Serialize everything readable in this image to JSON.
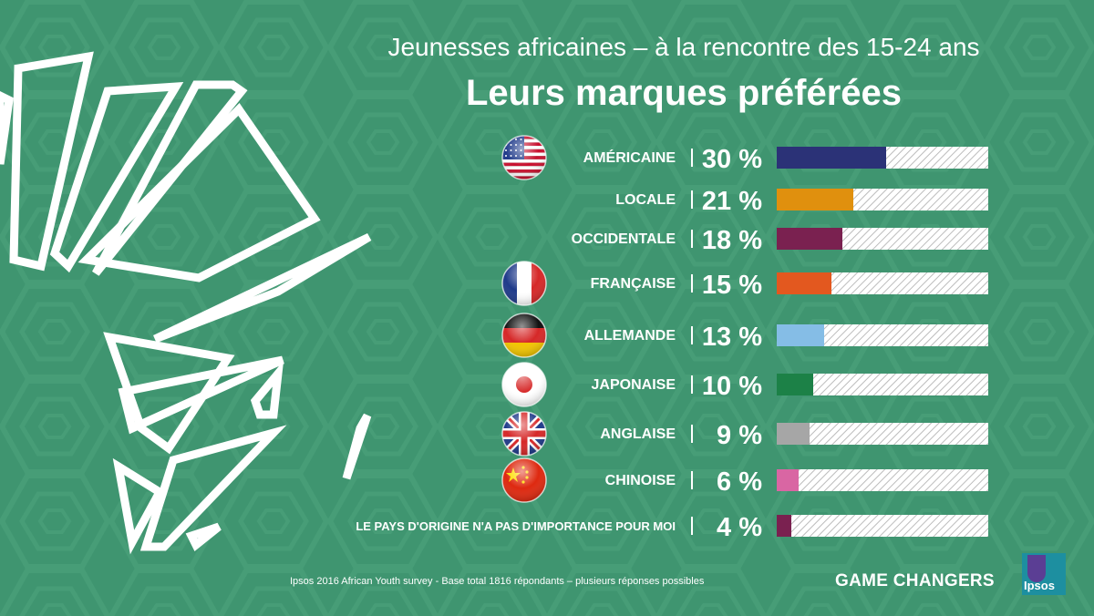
{
  "header": {
    "subtitle": "Jeunesses africaines – à la rencontre des 15-24 ans",
    "title": "Leurs marques préférées"
  },
  "colors": {
    "background": "#3f9570",
    "bar_track": "#ffffff",
    "bar_hatch": "#bcbcbc"
  },
  "chart_data": {
    "type": "bar",
    "orientation": "horizontal",
    "unit": "%",
    "xlim": [
      0,
      100
    ],
    "categories": [
      "AMÉRICAINE",
      "LOCALE",
      "OCCIDENTALE",
      "FRANÇAISE",
      "ALLEMANDE",
      "JAPONAISE",
      "ANGLAISE",
      "CHINOISE",
      "LE PAYS D'ORIGINE N'A PAS D'IMPORTANCE POUR MOI"
    ],
    "values": [
      30,
      21,
      18,
      15,
      13,
      10,
      9,
      6,
      4
    ],
    "value_labels": [
      "30 %",
      "21 %",
      "18 %",
      "15 %",
      "13 %",
      "10 %",
      "9 %",
      "6 %",
      "4 %"
    ],
    "bar_colors": [
      "#2b3277",
      "#e0900e",
      "#7a2150",
      "#e3581f",
      "#85bde6",
      "#1c8147",
      "#a6a6a6",
      "#d966a3",
      "#7a2150"
    ],
    "flags": [
      "us-flag-icon",
      "",
      "",
      "france-flag-icon",
      "germany-flag-icon",
      "japan-flag-icon",
      "uk-flag-icon",
      "china-flag-icon",
      ""
    ]
  },
  "footer": {
    "note": "Ipsos 2016 African Youth survey  - Base total 1816 répondants – plusieurs réponses possibles",
    "tagline": "GAME CHANGERS",
    "logo": "Ipsos"
  }
}
